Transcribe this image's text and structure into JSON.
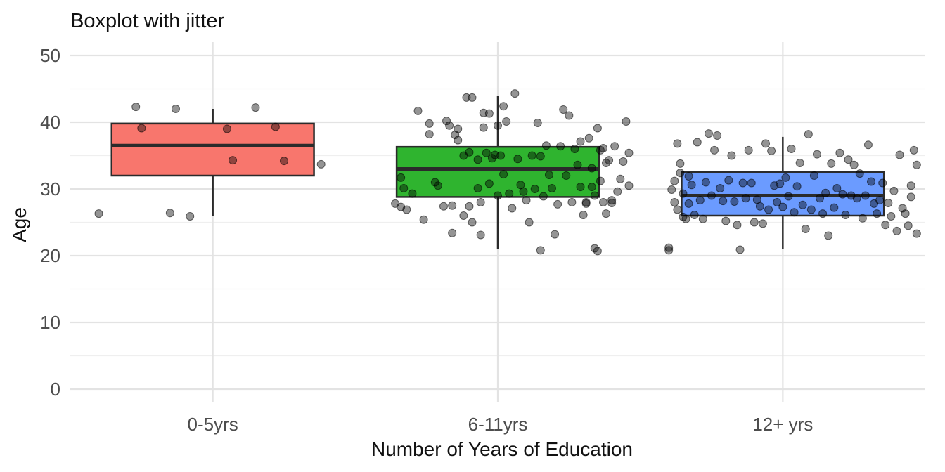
{
  "chart_data": {
    "type": "boxplot",
    "title": "Boxplot with jitter",
    "xlabel": "Number of Years of Education",
    "ylabel": "Age",
    "ylim": [
      -2,
      52
    ],
    "y_ticks": [
      0,
      10,
      20,
      30,
      40,
      50
    ],
    "grid": true,
    "legend": "none",
    "categories": [
      "0-5yrs",
      "6-11yrs",
      "12+ yrs"
    ],
    "colors": {
      "0-5yrs": "#f8766d",
      "6-11yrs": "#2fb42f",
      "12+ yrs": "#6b9bff"
    },
    "boxes": [
      {
        "category": "0-5yrs",
        "whisker_low": 26,
        "q1": 32,
        "median": 36.5,
        "q3": 39.8,
        "whisker_high": 42
      },
      {
        "category": "6-11yrs",
        "whisker_low": 21,
        "q1": 28.8,
        "median": 33,
        "q3": 36.3,
        "whisker_high": 44
      },
      {
        "category": "12+ yrs",
        "whisker_low": 21,
        "q1": 26,
        "median": 29,
        "q3": 32.5,
        "whisker_high": 37.8
      }
    ],
    "points": {
      "0-5yrs": [
        [
          -0.4,
          26.3
        ],
        [
          -0.27,
          42.3
        ],
        [
          -0.25,
          39.1
        ],
        [
          -0.15,
          26.4
        ],
        [
          -0.13,
          42.0
        ],
        [
          0.05,
          39.0
        ],
        [
          0.07,
          34.3
        ],
        [
          0.15,
          42.2
        ],
        [
          0.22,
          39.3
        ],
        [
          0.25,
          34.2
        ],
        [
          0.38,
          33.7
        ],
        [
          -0.08,
          25.9
        ]
      ],
      "6-11yrs": [
        [
          -0.36,
          27.8
        ],
        [
          -0.34,
          31.7
        ],
        [
          -0.33,
          30.1
        ],
        [
          -0.34,
          27.3
        ],
        [
          -0.32,
          26.9
        ],
        [
          -0.3,
          29.3
        ],
        [
          -0.28,
          41.7
        ],
        [
          -0.26,
          25.4
        ],
        [
          -0.24,
          39.8
        ],
        [
          -0.24,
          38.2
        ],
        [
          -0.22,
          31.0
        ],
        [
          -0.21,
          30.5
        ],
        [
          -0.19,
          27.4
        ],
        [
          -0.18,
          40.2
        ],
        [
          -0.17,
          39.5
        ],
        [
          -0.16,
          23.4
        ],
        [
          -0.16,
          27.5
        ],
        [
          -0.15,
          38.1
        ],
        [
          -0.14,
          39.0
        ],
        [
          -0.14,
          37.3
        ],
        [
          -0.12,
          35.0
        ],
        [
          -0.12,
          26.0
        ],
        [
          -0.11,
          43.7
        ],
        [
          -0.1,
          27.4
        ],
        [
          -0.1,
          35.5
        ],
        [
          -0.09,
          43.7
        ],
        [
          -0.09,
          25.0
        ],
        [
          -0.07,
          34.4
        ],
        [
          -0.07,
          30.1
        ],
        [
          -0.06,
          23.1
        ],
        [
          -0.06,
          28.0
        ],
        [
          -0.05,
          39.2
        ],
        [
          -0.05,
          41.4
        ],
        [
          -0.04,
          35.4
        ],
        [
          -0.03,
          41.3
        ],
        [
          -0.03,
          30.8
        ],
        [
          -0.02,
          34.6
        ],
        [
          -0.01,
          35.1
        ],
        [
          0.0,
          29.0
        ],
        [
          0.0,
          39.5
        ],
        [
          0.01,
          35.0
        ],
        [
          0.02,
          42.4
        ],
        [
          0.02,
          32.2
        ],
        [
          0.03,
          40.1
        ],
        [
          0.04,
          29.3
        ],
        [
          0.05,
          27.1
        ],
        [
          0.06,
          44.3
        ],
        [
          0.07,
          34.5
        ],
        [
          0.08,
          30.6
        ],
        [
          0.09,
          29.6
        ],
        [
          0.1,
          28.3
        ],
        [
          0.11,
          25.0
        ],
        [
          0.12,
          35.0
        ],
        [
          0.13,
          30.0
        ],
        [
          0.14,
          39.9
        ],
        [
          0.15,
          34.9
        ],
        [
          0.15,
          20.8
        ],
        [
          0.16,
          28.9
        ],
        [
          0.17,
          36.5
        ],
        [
          0.18,
          32.1
        ],
        [
          0.19,
          30.1
        ],
        [
          0.2,
          23.2
        ],
        [
          0.21,
          27.7
        ],
        [
          0.22,
          36.4
        ],
        [
          0.23,
          41.9
        ],
        [
          0.24,
          32.0
        ],
        [
          0.25,
          41.0
        ],
        [
          0.26,
          28.0
        ],
        [
          0.27,
          36.0
        ],
        [
          0.28,
          33.6
        ],
        [
          0.29,
          30.3
        ],
        [
          0.29,
          37.1
        ],
        [
          0.3,
          26.1
        ],
        [
          0.31,
          28.0
        ],
        [
          0.31,
          27.8
        ],
        [
          0.32,
          37.6
        ],
        [
          0.33,
          33.1
        ],
        [
          0.33,
          30.3
        ],
        [
          0.34,
          29.0
        ],
        [
          0.34,
          21.1
        ],
        [
          0.35,
          20.7
        ],
        [
          0.35,
          39.1
        ],
        [
          0.36,
          31.2
        ],
        [
          0.36,
          35.8
        ],
        [
          0.37,
          28.0
        ],
        [
          0.37,
          36.1
        ],
        [
          0.38,
          33.9
        ],
        [
          0.38,
          26.3
        ],
        [
          0.39,
          34.3
        ],
        [
          0.4,
          27.9
        ],
        [
          0.4,
          28.3
        ],
        [
          0.41,
          36.4
        ],
        [
          0.42,
          29.6
        ],
        [
          0.43,
          31.5
        ],
        [
          0.45,
          40.1
        ],
        [
          0.46,
          30.5
        ],
        [
          0.44,
          34.1
        ],
        [
          0.46,
          35.4
        ]
      ],
      "12+ yrs": [
        [
          -0.4,
          21.2
        ],
        [
          -0.4,
          20.8
        ],
        [
          -0.39,
          29.9
        ],
        [
          -0.38,
          28.0
        ],
        [
          -0.38,
          31.2
        ],
        [
          -0.37,
          26.9
        ],
        [
          -0.37,
          36.8
        ],
        [
          -0.36,
          33.8
        ],
        [
          -0.36,
          32.4
        ],
        [
          -0.35,
          25.8
        ],
        [
          -0.35,
          29.3
        ],
        [
          -0.34,
          25.5
        ],
        [
          -0.33,
          31.9
        ],
        [
          -0.33,
          27.8
        ],
        [
          -0.32,
          30.6
        ],
        [
          -0.31,
          26.1
        ],
        [
          -0.3,
          37.0
        ],
        [
          -0.29,
          28.3
        ],
        [
          -0.28,
          25.5
        ],
        [
          -0.27,
          31.0
        ],
        [
          -0.26,
          38.3
        ],
        [
          -0.25,
          29.0
        ],
        [
          -0.24,
          35.8
        ],
        [
          -0.23,
          38.0
        ],
        [
          -0.22,
          30.1
        ],
        [
          -0.21,
          28.2
        ],
        [
          -0.2,
          25.2
        ],
        [
          -0.19,
          31.3
        ],
        [
          -0.18,
          35.0
        ],
        [
          -0.17,
          28.1
        ],
        [
          -0.16,
          24.6
        ],
        [
          -0.15,
          20.9
        ],
        [
          -0.14,
          30.9
        ],
        [
          -0.13,
          28.6
        ],
        [
          -0.12,
          35.8
        ],
        [
          -0.11,
          30.9
        ],
        [
          -0.1,
          25.0
        ],
        [
          -0.09,
          28.4
        ],
        [
          -0.08,
          27.4
        ],
        [
          -0.07,
          24.8
        ],
        [
          -0.06,
          36.8
        ],
        [
          -0.05,
          26.9
        ],
        [
          -0.04,
          35.7
        ],
        [
          -0.03,
          30.5
        ],
        [
          -0.02,
          28.0
        ],
        [
          -0.01,
          30.8
        ],
        [
          0.0,
          27.3
        ],
        [
          0.01,
          31.7
        ],
        [
          0.02,
          28.9
        ],
        [
          0.03,
          36.0
        ],
        [
          0.04,
          26.5
        ],
        [
          0.05,
          30.4
        ],
        [
          0.06,
          33.9
        ],
        [
          0.07,
          27.6
        ],
        [
          0.08,
          24.0
        ],
        [
          0.09,
          38.2
        ],
        [
          0.1,
          26.9
        ],
        [
          0.11,
          32.0
        ],
        [
          0.12,
          35.2
        ],
        [
          0.13,
          28.6
        ],
        [
          0.14,
          26.3
        ],
        [
          0.15,
          29.4
        ],
        [
          0.16,
          23.0
        ],
        [
          0.17,
          33.8
        ],
        [
          0.18,
          27.2
        ],
        [
          0.19,
          30.1
        ],
        [
          0.2,
          35.4
        ],
        [
          0.21,
          29.2
        ],
        [
          0.22,
          26.1
        ],
        [
          0.23,
          34.4
        ],
        [
          0.24,
          29.0
        ],
        [
          0.25,
          33.6
        ],
        [
          0.26,
          28.6
        ],
        [
          0.27,
          32.3
        ],
        [
          0.28,
          25.6
        ],
        [
          0.29,
          29.0
        ],
        [
          0.3,
          36.6
        ],
        [
          0.31,
          31.1
        ],
        [
          0.32,
          27.8
        ],
        [
          0.33,
          26.3
        ],
        [
          0.34,
          28.3
        ],
        [
          0.35,
          30.9
        ],
        [
          0.36,
          24.6
        ],
        [
          0.37,
          27.9
        ],
        [
          0.38,
          25.9
        ],
        [
          0.39,
          29.7
        ],
        [
          0.4,
          23.7
        ],
        [
          0.41,
          35.1
        ],
        [
          0.42,
          27.1
        ],
        [
          0.43,
          26.3
        ],
        [
          0.44,
          24.5
        ],
        [
          0.45,
          30.5
        ],
        [
          0.46,
          35.8
        ],
        [
          0.47,
          23.3
        ],
        [
          0.47,
          33.6
        ],
        [
          0.45,
          28.8
        ]
      ]
    }
  }
}
